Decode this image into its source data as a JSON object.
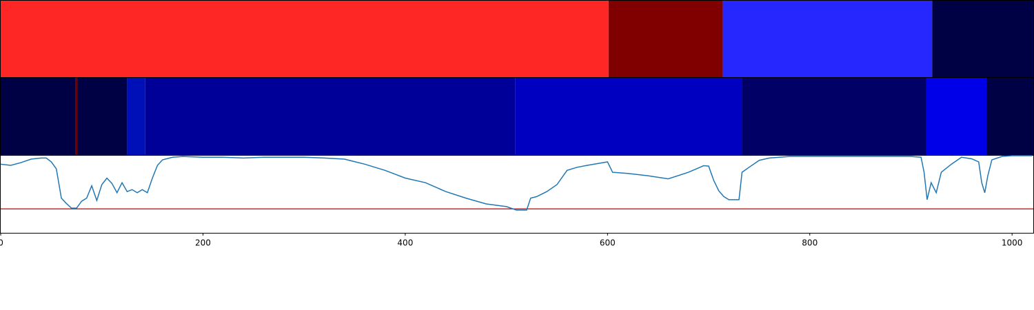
{
  "chart_data": [
    {
      "type": "band",
      "bins": [
        0,
        601,
        714,
        921,
        1021
      ],
      "colors": [
        "#ff2626",
        "#800000",
        "#2626ff",
        "#000044"
      ],
      "xlim": [
        0,
        1021
      ]
    },
    {
      "type": "band",
      "bins": [
        0,
        74,
        76,
        125,
        143,
        509,
        733,
        915,
        975,
        1021
      ],
      "colors": [
        "#000044",
        "#700000",
        "#000044",
        "#0010b8",
        "#000099",
        "#0000c0",
        "#000066",
        "#0000e8",
        "#000044"
      ],
      "xlim": [
        0,
        1021
      ]
    },
    {
      "type": "line",
      "x": [
        0,
        10,
        20,
        30,
        40,
        45,
        50,
        55,
        60,
        65,
        70,
        75,
        80,
        85,
        90,
        95,
        100,
        105,
        110,
        115,
        120,
        125,
        130,
        135,
        140,
        145,
        150,
        155,
        160,
        170,
        180,
        200,
        220,
        240,
        260,
        300,
        320,
        340,
        360,
        380,
        400,
        420,
        440,
        460,
        480,
        500,
        510,
        520,
        524,
        530,
        540,
        550,
        560,
        570,
        580,
        600,
        605,
        620,
        640,
        660,
        680,
        695,
        700,
        705,
        710,
        715,
        720,
        730,
        733,
        740,
        750,
        760,
        780,
        800,
        900,
        910,
        913,
        916,
        920,
        925,
        930,
        940,
        950,
        960,
        967,
        970,
        973,
        976,
        980,
        990,
        1000,
        1020
      ],
      "series": [
        {
          "color": "#1f77b4",
          "values": [
            0.89,
            0.875,
            0.91,
            0.955,
            0.97,
            0.97,
            0.92,
            0.83,
            0.45,
            0.38,
            0.32,
            0.32,
            0.41,
            0.45,
            0.61,
            0.42,
            0.625,
            0.71,
            0.64,
            0.52,
            0.65,
            0.535,
            0.56,
            0.52,
            0.56,
            0.52,
            0.71,
            0.875,
            0.946,
            0.98,
            0.99,
            0.98,
            0.98,
            0.97,
            0.98,
            0.98,
            0.97,
            0.955,
            0.89,
            0.81,
            0.71,
            0.65,
            0.535,
            0.45,
            0.375,
            0.34,
            0.295,
            0.295,
            0.45,
            0.47,
            0.535,
            0.625,
            0.81,
            0.85,
            0.875,
            0.92,
            0.785,
            0.77,
            0.74,
            0.7,
            0.785,
            0.87,
            0.865,
            0.68,
            0.545,
            0.47,
            0.43,
            0.43,
            0.785,
            0.85,
            0.94,
            0.97,
            0.99,
            0.99,
            0.99,
            0.98,
            0.785,
            0.43,
            0.65,
            0.52,
            0.785,
            0.89,
            0.98,
            0.96,
            0.92,
            0.65,
            0.52,
            0.74,
            0.946,
            0.99,
            1.0,
            1.0
          ]
        }
      ],
      "hline": {
        "value": 0.31,
        "color": "#e02020"
      },
      "xlim": [
        0,
        1021
      ],
      "ylim": [
        0,
        1
      ],
      "xticks": [
        0,
        200,
        400,
        600,
        800,
        1000
      ]
    }
  ]
}
